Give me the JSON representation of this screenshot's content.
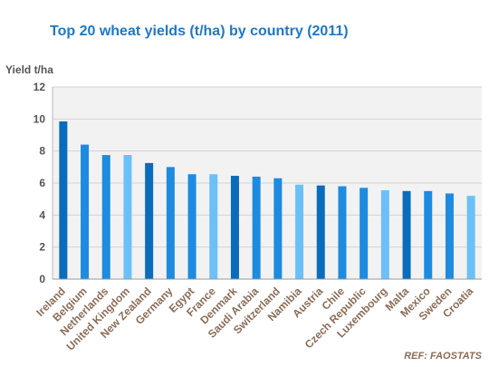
{
  "chart_data": {
    "type": "bar",
    "title": "Top 20 wheat yields (t/ha) by country (2011)",
    "ylabel": "Yield t/ha",
    "xlabel": "",
    "ylim": [
      0,
      12
    ],
    "yticks": [
      0,
      2,
      4,
      6,
      8,
      10,
      12
    ],
    "grid": true,
    "categories": [
      "Ireland",
      "Belgium",
      "Netherlands",
      "United Kingdom",
      "New Zealand",
      "Germany",
      "Egypt",
      "France",
      "Denmark",
      "Saudi Arabia",
      "Switzerland",
      "Namibia",
      "Austria",
      "Chile",
      "Czech Republic",
      "Luxembourg",
      "Malta",
      "Mexico",
      "Sweden",
      "Croatia"
    ],
    "values": [
      9.85,
      8.4,
      7.75,
      7.75,
      7.25,
      7.0,
      6.55,
      6.55,
      6.45,
      6.4,
      6.3,
      5.9,
      5.85,
      5.8,
      5.7,
      5.55,
      5.5,
      5.5,
      5.35,
      5.2
    ],
    "bar_colors": [
      "#0a6cbc",
      "#1d8be0",
      "#1d8be0",
      "#6bc0f7",
      "#0a6cbc",
      "#1d8be0",
      "#1d8be0",
      "#6bc0f7",
      "#0a6cbc",
      "#1d8be0",
      "#1d8be0",
      "#6bc0f7",
      "#0a6cbc",
      "#1d8be0",
      "#1d8be0",
      "#6bc0f7",
      "#0a6cbc",
      "#1d8be0",
      "#1d8be0",
      "#6bc0f7"
    ],
    "source_note": "REF: FAOSTATS"
  },
  "colors": {
    "title": "#1f78c8",
    "plot_bg": "#f2f2f2",
    "grid": "#d3d3d3",
    "tick_label": "#555555",
    "category_label": "#8a6d57"
  }
}
